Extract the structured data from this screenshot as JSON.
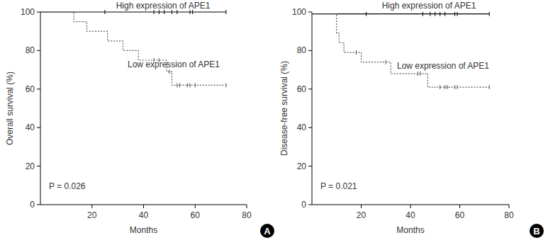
{
  "chart_data": [
    {
      "type": "step",
      "panel": "A",
      "ylabel": "Overall survival (%)",
      "xlabel": "Months",
      "annotation": "P = 0.026",
      "xlim": [
        0,
        80
      ],
      "xticks": [
        20,
        40,
        60,
        80
      ],
      "ylim": [
        0,
        100
      ],
      "yticks": [
        0,
        20,
        40,
        60,
        80,
        100
      ],
      "series": [
        {
          "name": "High expression of APE1",
          "color": "#000000",
          "line_style": "solid",
          "x": [
            0,
            72
          ],
          "values": [
            100,
            100
          ],
          "censored_x": [
            25,
            44,
            46,
            48,
            51,
            53,
            58,
            59,
            72
          ],
          "censored_values": [
            100,
            100,
            100,
            100,
            100,
            100,
            100,
            100,
            100
          ]
        },
        {
          "name": "Low expression of APE1",
          "color": "#555555",
          "line_style": "dotted",
          "x": [
            0,
            13,
            18,
            26,
            32,
            38,
            49,
            51,
            72
          ],
          "values": [
            100,
            95,
            90,
            85,
            80,
            75,
            69,
            62,
            62
          ],
          "censored_x": [
            44,
            46,
            50,
            53,
            54,
            57,
            58,
            60,
            72
          ],
          "censored_values": [
            75,
            75,
            69,
            62,
            62,
            62,
            62,
            62,
            62
          ]
        }
      ]
    },
    {
      "type": "step",
      "panel": "B",
      "ylabel": "Disease-free survival (%)",
      "xlabel": "Months",
      "annotation": "P = 0.021",
      "xlim": [
        0,
        80
      ],
      "xticks": [
        20,
        40,
        60,
        80
      ],
      "ylim": [
        0,
        100
      ],
      "yticks": [
        0,
        20,
        40,
        60,
        80,
        100
      ],
      "series": [
        {
          "name": "High expression of APE1",
          "color": "#000000",
          "line_style": "solid",
          "x": [
            0,
            72
          ],
          "values": [
            99,
            99
          ],
          "censored_x": [
            22,
            45,
            48,
            50,
            52,
            54,
            58,
            59,
            72
          ],
          "censored_values": [
            99,
            99,
            99,
            99,
            99,
            99,
            99,
            99,
            99
          ]
        },
        {
          "name": "Low expression of APE1",
          "color": "#555555",
          "line_style": "dotted",
          "x": [
            0,
            10,
            11,
            13,
            20,
            32,
            47,
            72
          ],
          "values": [
            99,
            89,
            84,
            79,
            74,
            68,
            61,
            61
          ],
          "censored_x": [
            18,
            30,
            43,
            44,
            52,
            54,
            55,
            58,
            59,
            72
          ],
          "censored_values": [
            79,
            74,
            68,
            68,
            61,
            61,
            61,
            61,
            61,
            61
          ]
        }
      ]
    }
  ]
}
